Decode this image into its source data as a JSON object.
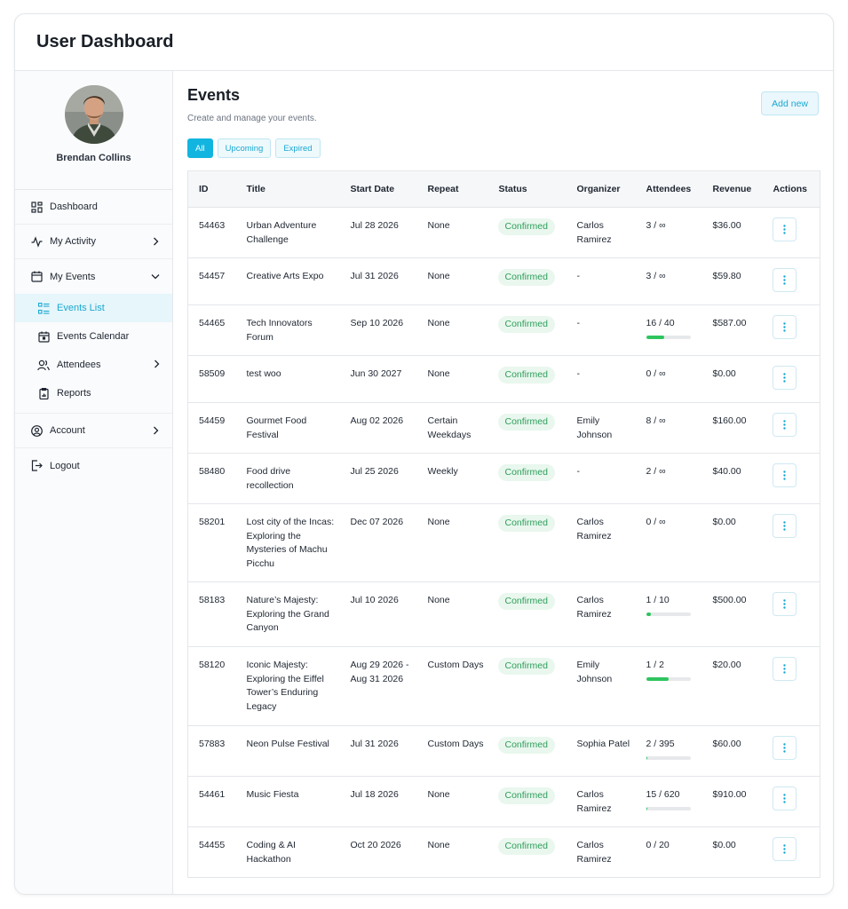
{
  "app": {
    "title": "User Dashboard"
  },
  "user": {
    "name": "Brendan Collins"
  },
  "nav": {
    "dashboard": "Dashboard",
    "my_activity": "My Activity",
    "my_events": "My Events",
    "events_list": "Events List",
    "events_calendar": "Events Calendar",
    "attendees": "Attendees",
    "reports": "Reports",
    "account": "Account",
    "logout": "Logout"
  },
  "page": {
    "title": "Events",
    "subtitle": "Create and manage your events.",
    "add_new": "Add new"
  },
  "filters": [
    "All",
    "Upcoming",
    "Expired"
  ],
  "table": {
    "columns": [
      "ID",
      "Title",
      "Start Date",
      "Repeat",
      "Status",
      "Organizer",
      "Attendees",
      "Revenue",
      "Actions"
    ],
    "rows": [
      {
        "id": "54463",
        "title": "Urban Adventure Challenge",
        "date": "Jul 28 2026",
        "repeat": "None",
        "status": "Confirmed",
        "organizer": "Carlos Ramirez",
        "attendees": "3 / ∞",
        "progress": null,
        "revenue": "$36.00"
      },
      {
        "id": "54457",
        "title": "Creative Arts Expo",
        "date": "Jul 31 2026",
        "repeat": "None",
        "status": "Confirmed",
        "organizer": "-",
        "attendees": "3 / ∞",
        "progress": null,
        "revenue": "$59.80"
      },
      {
        "id": "54465",
        "title": "Tech Innovators Forum",
        "date": "Sep 10 2026",
        "repeat": "None",
        "status": "Confirmed",
        "organizer": "-",
        "attendees": "16 / 40",
        "progress": 0.4,
        "revenue": "$587.00"
      },
      {
        "id": "58509",
        "title": "test woo",
        "date": "Jun 30 2027",
        "repeat": "None",
        "status": "Confirmed",
        "organizer": "-",
        "attendees": "0 / ∞",
        "progress": null,
        "revenue": "$0.00"
      },
      {
        "id": "54459",
        "title": "Gourmet Food Festival",
        "date": "Aug 02 2026",
        "repeat": "Certain Weekdays",
        "status": "Confirmed",
        "organizer": "Emily Johnson",
        "attendees": "8 / ∞",
        "progress": null,
        "revenue": "$160.00"
      },
      {
        "id": "58480",
        "title": "Food drive recollection",
        "date": "Jul 25 2026",
        "repeat": "Weekly",
        "status": "Confirmed",
        "organizer": "-",
        "attendees": "2 / ∞",
        "progress": null,
        "revenue": "$40.00"
      },
      {
        "id": "58201",
        "title": "Lost city of the Incas: Exploring the Mysteries of Machu Picchu",
        "date": "Dec 07 2026",
        "repeat": "None",
        "status": "Confirmed",
        "organizer": "Carlos Ramirez",
        "attendees": "0 / ∞",
        "progress": null,
        "revenue": "$0.00"
      },
      {
        "id": "58183",
        "title": "Nature’s Majesty: Exploring the Grand Canyon",
        "date": "Jul 10 2026",
        "repeat": "None",
        "status": "Confirmed",
        "organizer": "Carlos Ramirez",
        "attendees": "1 / 10",
        "progress": 0.1,
        "revenue": "$500.00"
      },
      {
        "id": "58120",
        "title": "Iconic Majesty: Exploring the Eiffel Tower’s Enduring Legacy",
        "date": "Aug 29 2026 - Aug 31 2026",
        "repeat": "Custom Days",
        "status": "Confirmed",
        "organizer": "Emily Johnson",
        "attendees": "1 / 2",
        "progress": 0.5,
        "revenue": "$20.00"
      },
      {
        "id": "57883",
        "title": "Neon Pulse Festival",
        "date": "Jul 31 2026",
        "repeat": "Custom Days",
        "status": "Confirmed",
        "organizer": "Sophia Patel",
        "attendees": "2 / 395",
        "progress": 0.005,
        "revenue": "$60.00"
      },
      {
        "id": "54461",
        "title": "Music Fiesta",
        "date": "Jul 18 2026",
        "repeat": "None",
        "status": "Confirmed",
        "organizer": "Carlos Ramirez",
        "attendees": "15 / 620",
        "progress": 0.024,
        "revenue": "$910.00"
      },
      {
        "id": "54455",
        "title": "Coding & AI Hackathon",
        "date": "Oct 20 2026",
        "repeat": "None",
        "status": "Confirmed",
        "organizer": "Carlos Ramirez",
        "attendees": "0 / 20",
        "progress": null,
        "revenue": "$0.00"
      }
    ]
  },
  "colors": {
    "accent": "#12b5e0",
    "status_green": "#2e9e5a",
    "progress_green": "#2ec45f"
  }
}
